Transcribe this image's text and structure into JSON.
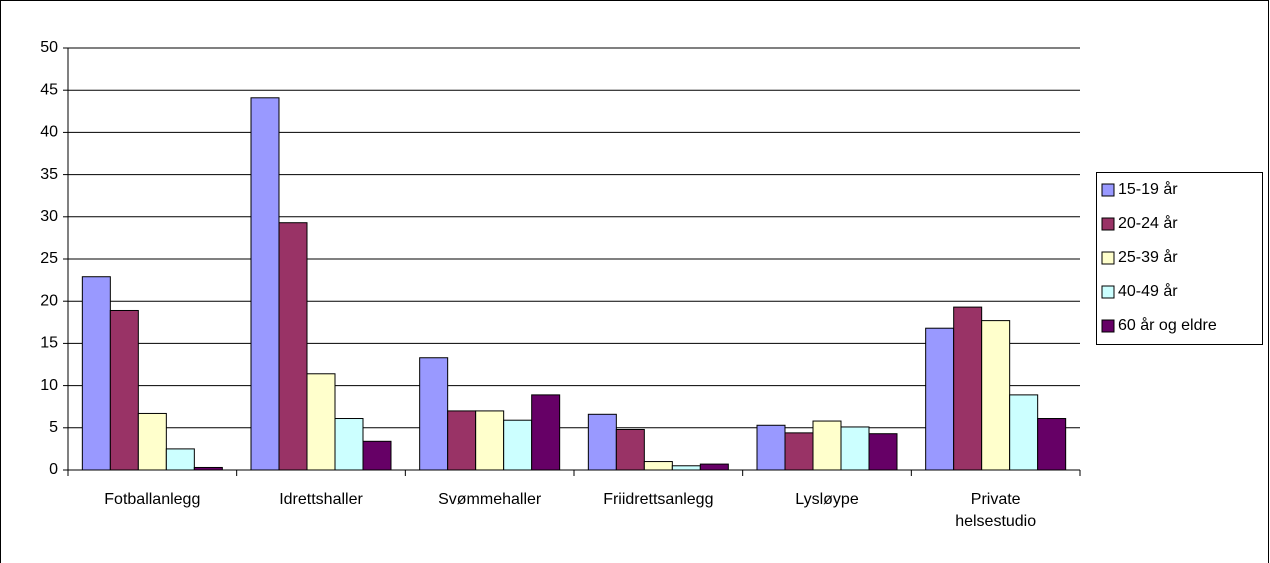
{
  "chart_data": {
    "type": "bar",
    "categories": [
      "Fotballanlegg",
      "Idrettshaller",
      "Svømmehaller",
      "Friidrettsanlegg",
      "Lysløype",
      "Private helsestudio"
    ],
    "series": [
      {
        "name": "15-19 år",
        "color": "#9999ff",
        "values": [
          22.9,
          44.1,
          13.3,
          6.6,
          5.3,
          16.8
        ]
      },
      {
        "name": "20-24 år",
        "color": "#993366",
        "values": [
          18.9,
          29.3,
          7.0,
          4.8,
          4.4,
          19.3
        ]
      },
      {
        "name": "25-39 år",
        "color": "#ffffcc",
        "values": [
          6.7,
          11.4,
          7.0,
          1.0,
          5.8,
          17.7
        ]
      },
      {
        "name": "40-49 år",
        "color": "#ccffff",
        "values": [
          2.5,
          6.1,
          5.9,
          0.5,
          5.1,
          8.9
        ]
      },
      {
        "name": "60 år og eldre",
        "color": "#660066",
        "values": [
          0.3,
          3.4,
          8.9,
          0.7,
          4.3,
          6.1
        ]
      }
    ],
    "ylim": [
      0,
      50
    ],
    "yticks": [
      0,
      5,
      10,
      15,
      20,
      25,
      30,
      35,
      40,
      45,
      50
    ],
    "grid": true,
    "legend": "right"
  }
}
